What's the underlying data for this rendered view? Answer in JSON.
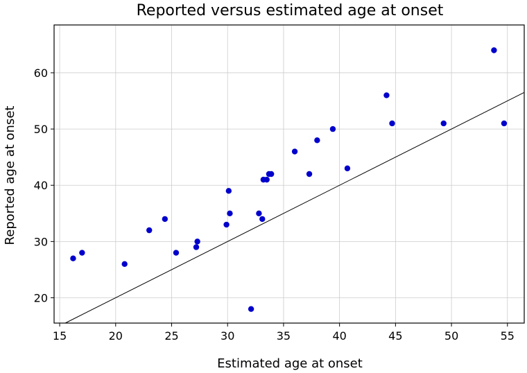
{
  "chart_data": {
    "type": "scatter",
    "title": "Reported versus estimated age at onset",
    "xlabel": "Estimated age at onset",
    "ylabel": "Reported age at onset",
    "xlim": [
      14.5,
      56.5
    ],
    "ylim": [
      15.5,
      68.5
    ],
    "xticks": [
      15,
      20,
      25,
      30,
      35,
      40,
      45,
      50,
      55
    ],
    "yticks": [
      20,
      30,
      40,
      50,
      60
    ],
    "grid": true,
    "point_color": "#0000cc",
    "reference_line": {
      "kind": "identity",
      "color": "#000000"
    },
    "series": [
      {
        "x": [
          16.2,
          17.0,
          20.8,
          23.0,
          24.4,
          25.4,
          27.2,
          27.3,
          29.9,
          30.1,
          30.2,
          32.1,
          32.8,
          33.1,
          33.2,
          33.5,
          33.7,
          33.9,
          36.0,
          37.3,
          38.0,
          39.4,
          40.7,
          44.2,
          44.7,
          49.3,
          53.8,
          54.7
        ],
        "y": [
          27,
          28,
          26,
          32,
          34,
          28,
          29,
          30,
          33,
          39,
          35,
          18,
          35,
          34,
          41,
          41,
          42,
          42,
          46,
          42,
          48,
          50,
          43,
          56,
          51,
          51,
          64,
          51
        ]
      }
    ]
  }
}
